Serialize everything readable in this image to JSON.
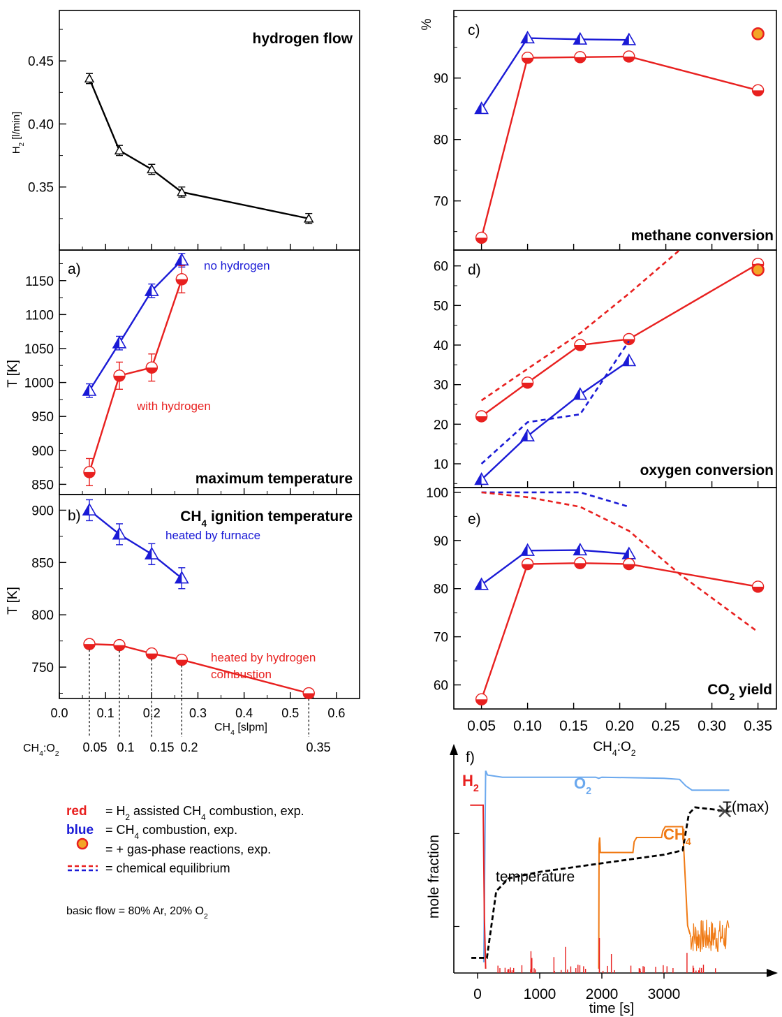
{
  "colors": {
    "red": "#e8201f",
    "blue": "#1a1ad6",
    "black": "#000000",
    "orange": "#f07a14",
    "lightblue": "#6aa8ee",
    "dashblack": "#000000",
    "halfdot_top": "#ffffff",
    "dot_fill": "#f3a526"
  },
  "chart_data": [
    {
      "id": "hydrogen-flow",
      "type": "line",
      "title": "hydrogen flow",
      "ylabel_main": "H",
      "ylabel_sub": "2",
      "ylabel_rest": " [l/min]",
      "ylim": [
        0.3,
        0.49
      ],
      "xlim": [
        0.0,
        0.65
      ],
      "yticks": [
        0.35,
        0.4,
        0.45
      ],
      "ytick_labels": [
        "0.35",
        "0.40",
        "0.45"
      ],
      "series": [
        {
          "color_key": "black",
          "marker": "tri-open",
          "x": [
            0.065,
            0.13,
            0.2,
            0.265,
            0.54
          ],
          "y": [
            0.436,
            0.379,
            0.364,
            0.346,
            0.325
          ],
          "err": [
            0.004,
            0.004,
            0.004,
            0.004,
            0.004
          ]
        }
      ]
    },
    {
      "id": "maximum-temperature",
      "type": "line",
      "panel_label": "a)",
      "title": "maximum temperature",
      "ylabel": "T [K]",
      "ylim": [
        835,
        1195
      ],
      "xlim": [
        0.0,
        0.65
      ],
      "yticks": [
        850,
        900,
        950,
        1000,
        1050,
        1100,
        1150
      ],
      "ytick_labels": [
        "850",
        "900",
        "950",
        "1000",
        "1050",
        "1100",
        "1150"
      ],
      "annotations": [
        {
          "text": "no hydrogen",
          "color_key": "blue",
          "x": 0.32,
          "y": 1178
        },
        {
          "text": "with hydrogen",
          "color_key": "red",
          "x": 0.166,
          "y": 977
        }
      ],
      "series": [
        {
          "name": "no hydrogen",
          "color_key": "blue",
          "marker": "tri-half",
          "x": [
            0.065,
            0.13,
            0.2,
            0.265
          ],
          "y": [
            988,
            1058,
            1135,
            1180
          ],
          "err": [
            10,
            10,
            10,
            10
          ]
        },
        {
          "name": "with hydrogen",
          "color_key": "red",
          "marker": "circ-half",
          "x": [
            0.065,
            0.13,
            0.2,
            0.265
          ],
          "y": [
            868,
            1010,
            1022,
            1152
          ],
          "err": [
            20,
            20,
            20,
            20
          ]
        }
      ]
    },
    {
      "id": "ignition-temperature",
      "type": "line",
      "panel_label": "b)",
      "title_main": "CH",
      "title_sub": "4",
      "title_rest": " ignition temperature",
      "ylabel": "T [K]",
      "xlabel_main": "CH",
      "xlabel_sub": "4",
      "xlabel_rest": " [slpm]",
      "ylim": [
        720,
        915
      ],
      "xlim": [
        0.0,
        0.65
      ],
      "xticks": [
        0.0,
        0.1,
        0.2,
        0.3,
        0.4,
        0.5,
        0.6
      ],
      "xtick_labels": [
        "0.0",
        "0.1",
        "0.2",
        "0.3",
        "0.4",
        "0.5",
        "0.6"
      ],
      "yticks": [
        750,
        800,
        850,
        900
      ],
      "ytick_labels": [
        "750",
        "800",
        "850",
        "900"
      ],
      "ratio_axis_label_main": "CH",
      "ratio_axis_label_sub": "4",
      "ratio_axis_label_rest": ":O",
      "ratio_axis_label_sub2": "2",
      "ratio_x": [
        0.065,
        0.13,
        0.2,
        0.265,
        0.54
      ],
      "ratio_labels": [
        "0.05",
        "0.1",
        "0.15",
        "0.2",
        "0.35"
      ],
      "annotations": [
        {
          "text": "heated by furnace",
          "color_key": "blue",
          "x": 0.33,
          "y": 880
        },
        {
          "text": "heated by hydrogen",
          "color_key": "red",
          "x": 0.5,
          "y": 772
        },
        {
          "text": "combustion",
          "color_key": "red",
          "x": 0.46,
          "y": 757
        }
      ],
      "series": [
        {
          "name": "heated by furnace",
          "color_key": "blue",
          "marker": "tri-half",
          "x": [
            0.065,
            0.13,
            0.2,
            0.265
          ],
          "y": [
            900,
            877,
            858,
            835
          ],
          "err": [
            10,
            10,
            10,
            10
          ]
        },
        {
          "name": "heated by hydrogen combustion",
          "color_key": "red",
          "marker": "circ-half",
          "x": [
            0.065,
            0.13,
            0.2,
            0.265,
            0.54
          ],
          "y": [
            772,
            771,
            763,
            757,
            725
          ],
          "err": [
            3,
            3,
            3,
            3,
            3
          ]
        }
      ]
    },
    {
      "id": "methane-conversion",
      "type": "line",
      "panel_label": "c)",
      "title": "methane conversion",
      "ylabel": "%",
      "ylim": [
        62,
        101
      ],
      "xlim": [
        0.02,
        0.37
      ],
      "yticks": [
        70,
        80,
        90
      ],
      "ytick_labels": [
        "70",
        "80",
        "90"
      ],
      "series": [
        {
          "color_key": "blue",
          "marker": "tri-half",
          "x": [
            0.05,
            0.1,
            0.157,
            0.21
          ],
          "y": [
            85,
            96.5,
            96.3,
            96.2
          ]
        },
        {
          "color_key": "red",
          "marker": "circ-half",
          "x": [
            0.05,
            0.1,
            0.157,
            0.21,
            0.35
          ],
          "y": [
            64,
            93.3,
            93.4,
            93.5,
            88
          ]
        },
        {
          "color_key": "red",
          "marker": "dot",
          "x": [
            0.35
          ],
          "y": [
            97.2
          ]
        }
      ]
    },
    {
      "id": "oxygen-conversion",
      "type": "line",
      "panel_label": "d)",
      "title": "oxygen conversion",
      "ylim": [
        4,
        64
      ],
      "xlim": [
        0.02,
        0.37
      ],
      "yticks": [
        10,
        20,
        30,
        40,
        50,
        60
      ],
      "ytick_labels": [
        "10",
        "20",
        "30",
        "40",
        "50",
        "60"
      ],
      "series": [
        {
          "color_key": "blue",
          "marker": "tri-half",
          "x": [
            0.05,
            0.1,
            0.157,
            0.21
          ],
          "y": [
            6,
            17,
            27.5,
            36
          ]
        },
        {
          "color_key": "red",
          "marker": "circ-half",
          "x": [
            0.05,
            0.1,
            0.157,
            0.21,
            0.35
          ],
          "y": [
            22,
            30.5,
            40,
            41.5,
            60.5
          ]
        },
        {
          "color_key": "red",
          "marker": "dot",
          "x": [
            0.35
          ],
          "y": [
            59
          ]
        },
        {
          "color_key": "red",
          "dashed": true,
          "x": [
            0.05,
            0.1,
            0.157,
            0.21,
            0.265
          ],
          "y": [
            26,
            34,
            43,
            53,
            64
          ]
        },
        {
          "color_key": "blue",
          "dashed": true,
          "x": [
            0.05,
            0.1,
            0.157,
            0.21
          ],
          "y": [
            10,
            20.5,
            22.5,
            41
          ]
        }
      ]
    },
    {
      "id": "co2-yield",
      "type": "line",
      "panel_label": "e)",
      "title_main": "CO",
      "title_sub": "2",
      "title_rest": " yield",
      "xlabel_main": "CH",
      "xlabel_sub": "4",
      "xlabel_rest": ":O",
      "xlabel_sub2": "2",
      "ylim": [
        55,
        101
      ],
      "xlim": [
        0.02,
        0.37
      ],
      "xticks": [
        0.05,
        0.1,
        0.15,
        0.2,
        0.25,
        0.3,
        0.35
      ],
      "xtick_labels": [
        "0.05",
        "0.10",
        "0.15",
        "0.20",
        "0.25",
        "0.30",
        "0.35"
      ],
      "yticks": [
        60,
        70,
        80,
        90,
        100
      ],
      "ytick_labels": [
        "60",
        "70",
        "80",
        "90",
        "100"
      ],
      "series": [
        {
          "color_key": "blue",
          "marker": "tri-half",
          "x": [
            0.05,
            0.1,
            0.157,
            0.21
          ],
          "y": [
            80.8,
            87.9,
            88,
            87.2
          ]
        },
        {
          "color_key": "red",
          "marker": "circ-half",
          "x": [
            0.05,
            0.1,
            0.157,
            0.21,
            0.35
          ],
          "y": [
            57,
            85.1,
            85.3,
            85.1,
            80.4
          ]
        },
        {
          "color_key": "blue",
          "dashed": true,
          "x": [
            0.05,
            0.1,
            0.157,
            0.21
          ],
          "y": [
            100,
            100,
            100,
            97
          ]
        },
        {
          "color_key": "red",
          "dashed": true,
          "x": [
            0.05,
            0.1,
            0.157,
            0.21,
            0.265,
            0.35
          ],
          "y": [
            100,
            99,
            97,
            92,
            83,
            71
          ]
        }
      ]
    },
    {
      "id": "time-series",
      "type": "line",
      "panel_label": "f)",
      "xlabel": "time [s]",
      "ylabel": "mole fraction",
      "xlim": [
        -250,
        4200
      ],
      "ylim": [
        0,
        1
      ],
      "xticks": [
        0,
        1000,
        2000,
        3000
      ],
      "xtick_labels": [
        "0",
        "1000",
        "2000",
        "3000"
      ],
      "labels": {
        "h2_main": "H",
        "h2_sub": "2",
        "o2_main": "O",
        "o2_sub": "2",
        "ch4_main": "CH",
        "ch4_sub": "4",
        "temperature": "temperature",
        "tmax": "T(max)"
      },
      "series": [
        {
          "name": "O2",
          "color_key": "lightblue",
          "x": [
            100,
            130,
            160,
            400,
            1900,
            1950,
            2000,
            3000,
            3250,
            3350,
            3450,
            4050
          ],
          "y": [
            0.05,
            0.94,
            0.92,
            0.91,
            0.91,
            0.905,
            0.91,
            0.905,
            0.9,
            0.87,
            0.85,
            0.85
          ]
        },
        {
          "name": "H2",
          "color_key": "red",
          "x": [
            -120,
            90,
            110,
            130
          ],
          "y": [
            0.78,
            0.78,
            0.25,
            0.02
          ]
        },
        {
          "name": "CH4",
          "color_key": "orange",
          "x": [
            1950,
            1955,
            1965,
            1975,
            2500,
            2520,
            2560,
            2960,
            2980,
            3020,
            3300,
            3340,
            3380,
            3420
          ],
          "y": [
            0.02,
            0.6,
            0.63,
            0.56,
            0.56,
            0.61,
            0.63,
            0.63,
            0.66,
            0.68,
            0.68,
            0.45,
            0.22,
            0.18
          ]
        },
        {
          "name": "temperature",
          "color_key": "dashblack",
          "dashed": true,
          "x": [
            -100,
            150,
            300,
            500,
            1000,
            1500,
            2000,
            2500,
            3000,
            3300,
            3400,
            3500,
            3800,
            4050
          ],
          "y": [
            0.07,
            0.07,
            0.38,
            0.44,
            0.47,
            0.49,
            0.51,
            0.53,
            0.55,
            0.57,
            0.74,
            0.77,
            0.76,
            0.75
          ]
        }
      ]
    }
  ],
  "legend": {
    "rows": [
      {
        "key": "red",
        "text_before": "= H",
        "text_sub": "2",
        "text_after": " assisted CH",
        "text_sub2": "4",
        "text_after2": " combustion, exp."
      },
      {
        "key": "blue",
        "text_before": "= CH",
        "text_sub": "4",
        "text_after": " combustion, exp.",
        "text_sub2": "",
        "text_after2": ""
      },
      {
        "key": "",
        "text_before": "= + gas-phase reactions, exp.",
        "text_sub": "",
        "text_after": "",
        "text_sub2": "",
        "text_after2": ""
      },
      {
        "key": "",
        "text_before": "= chemical equilibrium",
        "text_sub": "",
        "text_after": "",
        "text_sub2": "",
        "text_after2": ""
      }
    ],
    "basic_flow_main": "basic flow = 80% Ar, 20% O",
    "basic_flow_sub": "2"
  }
}
